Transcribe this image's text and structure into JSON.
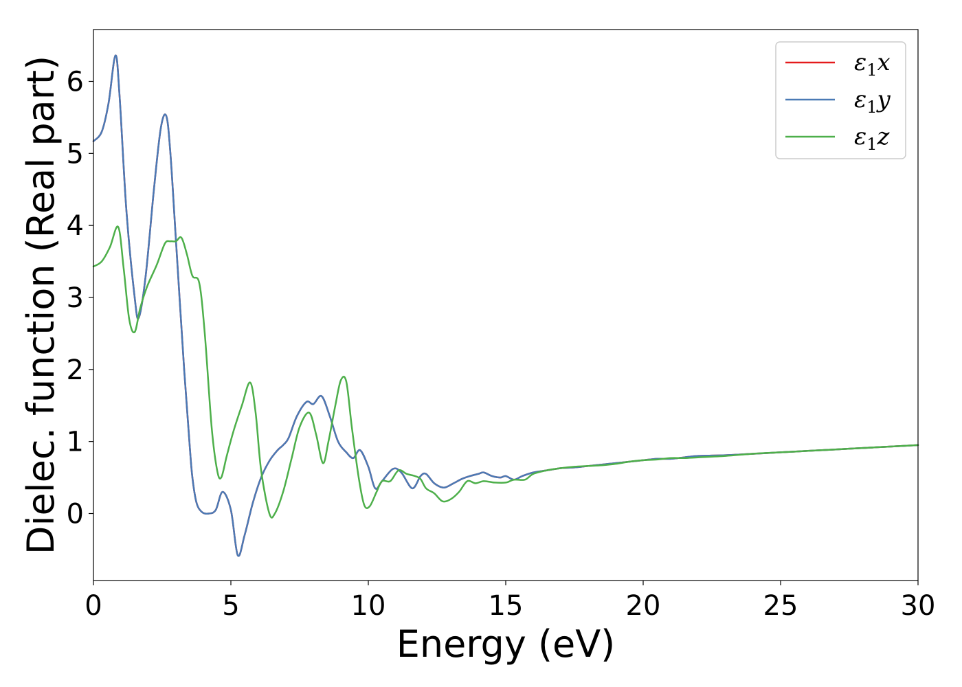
{
  "chart_data": {
    "type": "line",
    "title": "",
    "xlabel": "Energy (eV)",
    "ylabel": "Dielec. function (Real part)",
    "xlim": [
      0,
      30
    ],
    "ylim": [
      -0.93,
      6.72
    ],
    "xticks": [
      0,
      5,
      10,
      15,
      20,
      25,
      30
    ],
    "xtick_labels": [
      "0",
      "5",
      "10",
      "15",
      "20",
      "25",
      "30"
    ],
    "yticks": [
      0,
      1,
      2,
      3,
      4,
      5,
      6
    ],
    "ytick_labels": [
      "0",
      "1",
      "2",
      "3",
      "4",
      "5",
      "6"
    ],
    "grid": false,
    "legend_position": "top-right",
    "series": [
      {
        "name": "ε1x",
        "legend_symbol": "ε",
        "legend_subscript": "1",
        "legend_suffix": "x",
        "color": "#e41a1c",
        "x": [
          0,
          0.3,
          0.55,
          0.8,
          0.95,
          1.2,
          1.5,
          1.65,
          1.9,
          2.2,
          2.45,
          2.65,
          2.8,
          3.0,
          3.3,
          3.5,
          3.6,
          3.75,
          3.95,
          4.2,
          4.45,
          4.7,
          5.0,
          5.25,
          5.5,
          5.8,
          6.1,
          6.4,
          6.7,
          6.9,
          7.1,
          7.4,
          7.75,
          8.0,
          8.3,
          8.6,
          8.9,
          9.2,
          9.45,
          9.7,
          10.0,
          10.25,
          10.5,
          10.9,
          11.2,
          11.6,
          11.9,
          12.1,
          12.4,
          12.75,
          13.1,
          13.4,
          13.7,
          14.0,
          14.2,
          14.5,
          14.8,
          15.0,
          15.3,
          15.6,
          16.0,
          16.5,
          17.0,
          17.5,
          18.0,
          18.5,
          19.0,
          19.5,
          20.0,
          20.5,
          21.0,
          21.5,
          22.0,
          23.0,
          24.0,
          25.0,
          26.0,
          27.0,
          28.0,
          29.0,
          30.0
        ],
        "values": [
          5.17,
          5.3,
          5.7,
          6.36,
          5.8,
          4.2,
          3.0,
          2.72,
          3.3,
          4.5,
          5.35,
          5.52,
          5.0,
          3.8,
          2.0,
          0.95,
          0.5,
          0.15,
          0.02,
          0.0,
          0.05,
          0.3,
          0.05,
          -0.58,
          -0.3,
          0.15,
          0.5,
          0.73,
          0.88,
          0.95,
          1.05,
          1.35,
          1.55,
          1.52,
          1.63,
          1.35,
          1.0,
          0.85,
          0.77,
          0.88,
          0.65,
          0.35,
          0.45,
          0.62,
          0.57,
          0.35,
          0.52,
          0.55,
          0.42,
          0.36,
          0.42,
          0.48,
          0.52,
          0.55,
          0.57,
          0.52,
          0.5,
          0.52,
          0.47,
          0.52,
          0.57,
          0.6,
          0.63,
          0.64,
          0.66,
          0.68,
          0.7,
          0.72,
          0.74,
          0.76,
          0.76,
          0.78,
          0.8,
          0.81,
          0.83,
          0.85,
          0.87,
          0.89,
          0.91,
          0.93,
          0.95
        ]
      },
      {
        "name": "ε1y",
        "legend_symbol": "ε",
        "legend_subscript": "1",
        "legend_suffix": "y",
        "color": "#4a7ab5",
        "x": [
          0,
          0.3,
          0.55,
          0.8,
          0.95,
          1.2,
          1.5,
          1.65,
          1.9,
          2.2,
          2.45,
          2.65,
          2.8,
          3.0,
          3.3,
          3.5,
          3.6,
          3.75,
          3.95,
          4.2,
          4.45,
          4.7,
          5.0,
          5.25,
          5.5,
          5.8,
          6.1,
          6.4,
          6.7,
          6.9,
          7.1,
          7.4,
          7.75,
          8.0,
          8.3,
          8.6,
          8.9,
          9.2,
          9.45,
          9.7,
          10.0,
          10.25,
          10.5,
          10.9,
          11.2,
          11.6,
          11.9,
          12.1,
          12.4,
          12.75,
          13.1,
          13.4,
          13.7,
          14.0,
          14.2,
          14.5,
          14.8,
          15.0,
          15.3,
          15.6,
          16.0,
          16.5,
          17.0,
          17.5,
          18.0,
          18.5,
          19.0,
          19.5,
          20.0,
          20.5,
          21.0,
          21.5,
          22.0,
          23.0,
          24.0,
          25.0,
          26.0,
          27.0,
          28.0,
          29.0,
          30.0
        ],
        "values": [
          5.17,
          5.3,
          5.7,
          6.36,
          5.8,
          4.2,
          3.0,
          2.72,
          3.3,
          4.5,
          5.35,
          5.52,
          5.0,
          3.8,
          2.0,
          0.95,
          0.5,
          0.15,
          0.02,
          0.0,
          0.05,
          0.3,
          0.05,
          -0.58,
          -0.3,
          0.15,
          0.5,
          0.73,
          0.88,
          0.95,
          1.05,
          1.35,
          1.55,
          1.52,
          1.63,
          1.35,
          1.0,
          0.85,
          0.77,
          0.88,
          0.65,
          0.35,
          0.45,
          0.62,
          0.57,
          0.35,
          0.52,
          0.55,
          0.42,
          0.36,
          0.42,
          0.48,
          0.52,
          0.55,
          0.57,
          0.52,
          0.5,
          0.52,
          0.47,
          0.52,
          0.57,
          0.6,
          0.63,
          0.64,
          0.66,
          0.68,
          0.7,
          0.72,
          0.74,
          0.76,
          0.76,
          0.78,
          0.8,
          0.81,
          0.83,
          0.85,
          0.87,
          0.89,
          0.91,
          0.93,
          0.95
        ]
      },
      {
        "name": "ε1z",
        "legend_symbol": "ε",
        "legend_subscript": "1",
        "legend_suffix": "z",
        "color": "#4daf4a",
        "x": [
          0,
          0.3,
          0.6,
          0.9,
          1.1,
          1.3,
          1.5,
          1.7,
          1.95,
          2.3,
          2.6,
          2.8,
          3.0,
          3.2,
          3.4,
          3.6,
          3.85,
          4.05,
          4.3,
          4.5,
          4.65,
          4.85,
          5.1,
          5.4,
          5.7,
          5.9,
          6.1,
          6.4,
          6.6,
          6.9,
          7.2,
          7.5,
          7.85,
          8.1,
          8.35,
          8.55,
          8.8,
          9.0,
          9.2,
          9.4,
          9.65,
          9.85,
          10.05,
          10.3,
          10.5,
          10.8,
          11.1,
          11.4,
          11.7,
          11.9,
          12.1,
          12.4,
          12.7,
          13.0,
          13.3,
          13.6,
          13.9,
          14.2,
          14.6,
          15.0,
          15.3,
          15.7,
          16.0,
          16.5,
          17.0,
          17.5,
          18.0,
          18.5,
          19.0,
          19.5,
          20.0,
          20.5,
          21.0,
          21.5,
          22.0,
          23.0,
          24.0,
          25.0,
          26.0,
          27.0,
          28.0,
          29.0,
          30.0
        ],
        "values": [
          3.43,
          3.5,
          3.7,
          3.98,
          3.4,
          2.7,
          2.52,
          2.85,
          3.15,
          3.45,
          3.75,
          3.78,
          3.78,
          3.83,
          3.6,
          3.3,
          3.2,
          2.5,
          1.2,
          0.6,
          0.5,
          0.8,
          1.15,
          1.5,
          1.82,
          1.4,
          0.6,
          0.0,
          0.0,
          0.3,
          0.75,
          1.2,
          1.4,
          1.1,
          0.7,
          1.0,
          1.5,
          1.85,
          1.83,
          1.2,
          0.5,
          0.12,
          0.1,
          0.3,
          0.45,
          0.45,
          0.6,
          0.55,
          0.52,
          0.48,
          0.35,
          0.28,
          0.17,
          0.2,
          0.3,
          0.45,
          0.42,
          0.45,
          0.43,
          0.43,
          0.47,
          0.47,
          0.55,
          0.6,
          0.63,
          0.65,
          0.66,
          0.67,
          0.69,
          0.72,
          0.74,
          0.75,
          0.77,
          0.77,
          0.78,
          0.8,
          0.83,
          0.85,
          0.87,
          0.89,
          0.91,
          0.93,
          0.95
        ]
      }
    ]
  }
}
